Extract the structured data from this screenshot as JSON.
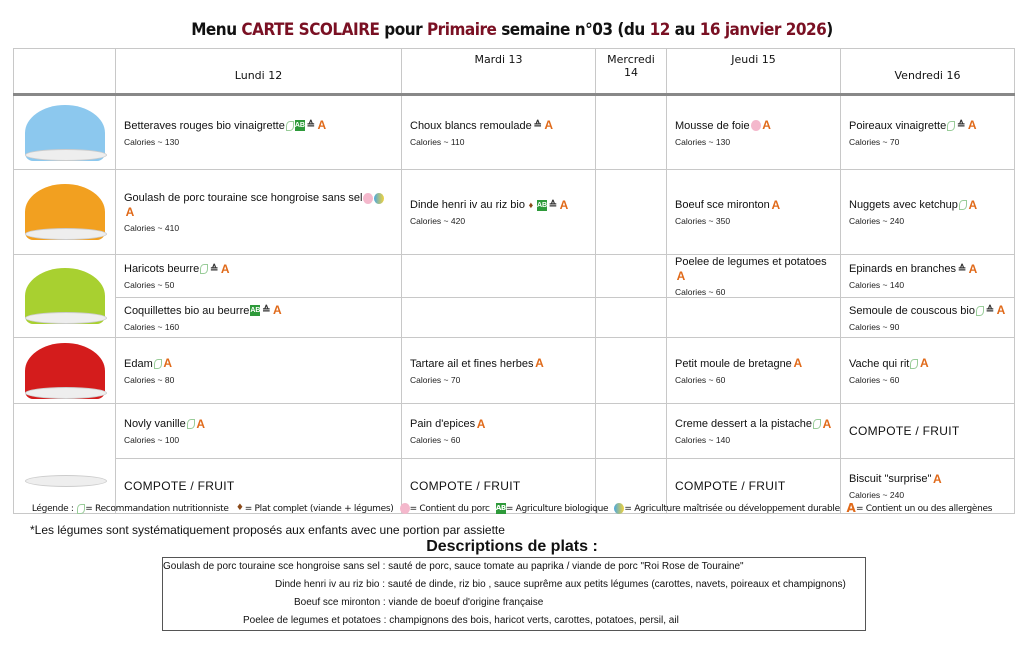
{
  "title": {
    "p1": "Menu ",
    "p2": "CARTE SCOLAIRE",
    "p3": " pour ",
    "p4": "Primaire",
    "p5": " semaine n°03 (du ",
    "p6": "12",
    "p7": " au ",
    "p8": "16 janvier 2026",
    "p9": ")"
  },
  "days": [
    "Lundi 12",
    "Mardi 13",
    "Mercredi 14",
    "Jeudi 15",
    "Vendredi 16"
  ],
  "rows": {
    "entree": {
      "lundi": {
        "name": "Betteraves rouges bio vinaigrette",
        "cal": "Calories ~ 130"
      },
      "mardi": {
        "name": "Choux blancs remoulade",
        "cal": "Calories ~ 110"
      },
      "jeudi": {
        "name": "Mousse de foie",
        "cal": "Calories ~ 130"
      },
      "vendredi": {
        "name": "Poireaux vinaigrette",
        "cal": "Calories ~ 70"
      }
    },
    "plat": {
      "lundi": {
        "name": "Goulash de porc touraine sce hongroise sans sel",
        "cal": "Calories ~ 410"
      },
      "mardi": {
        "name": "Dinde henri iv au riz bio",
        "cal": "Calories ~ 420"
      },
      "jeudi": {
        "name": "Boeuf sce mironton",
        "cal": "Calories ~ 350"
      },
      "vendredi": {
        "name": "Nuggets avec ketchup",
        "cal": "Calories ~ 240"
      }
    },
    "legume1": {
      "lundi": {
        "name": "Haricots beurre",
        "cal": "Calories ~ 50"
      },
      "jeudi": {
        "name": "Poelee de legumes et potatoes",
        "cal": "Calories ~ 60"
      },
      "vendredi": {
        "name": "Epinards en branches",
        "cal": "Calories ~ 140"
      }
    },
    "legume2": {
      "lundi": {
        "name": "Coquillettes bio au beurre",
        "cal": "Calories ~ 160"
      },
      "vendredi": {
        "name": "Semoule de couscous bio",
        "cal": "Calories ~ 90"
      }
    },
    "fromage": {
      "lundi": {
        "name": "Edam",
        "cal": "Calories ~ 80"
      },
      "mardi": {
        "name": "Tartare ail et fines herbes",
        "cal": "Calories ~ 70"
      },
      "jeudi": {
        "name": "Petit moule de bretagne",
        "cal": "Calories ~ 60"
      },
      "vendredi": {
        "name": "Vache qui rit",
        "cal": "Calories ~ 60"
      }
    },
    "dessert1": {
      "lundi": {
        "name": "Novly vanille",
        "cal": "Calories ~ 100"
      },
      "mardi": {
        "name": "Pain d'epices",
        "cal": "Calories ~ 60"
      },
      "jeudi": {
        "name": "Creme dessert a la pistache",
        "cal": "Calories ~ 140"
      },
      "vendredi": {
        "name": "COMPOTE / FRUIT"
      }
    },
    "dessert2": {
      "lundi": {
        "name": "COMPOTE / FRUIT"
      },
      "mardi": {
        "name": "COMPOTE / FRUIT"
      },
      "jeudi": {
        "name": "COMPOTE / FRUIT"
      },
      "vendredi": {
        "name": "Biscuit \"surprise\"",
        "cal": "Calories ~ 240"
      }
    }
  },
  "icons": {
    "ab": "AB",
    "allergen": "A",
    "homemade": "≙",
    "leaf": "",
    "pig": "",
    "durable": "",
    "complete": "♦"
  },
  "legend": {
    "label": "Légende : ",
    "items": [
      "= Recommandation nutritionniste",
      "= Plat complet (viande + légumes)",
      "= Contient du porc",
      "= Agriculture biologique",
      "= Agriculture maîtrisée ou développement durable",
      "= Contient un ou des allergènes"
    ]
  },
  "note": "*Les légumes sont systématiquement proposés aux enfants avec une portion par assiette",
  "descriptions_title": "Descriptions de plats :",
  "descriptions": [
    "Goulash de porc touraine sce hongroise sans sel : sauté de porc, sauce tomate au paprika / viande de porc \"Roi Rose de Touraine\"",
    "Dinde henri iv au riz bio : sauté de dinde, riz bio , sauce suprême aux petits légumes (carottes, navets, poireaux et champignons)",
    "Boeuf sce mironton : viande de boeuf d'origine française",
    "Poelee de legumes et potatoes : champignons des bois, haricot verts, carottes, potatoes, persil, ail"
  ],
  "colors": {
    "accent": "#7a1023",
    "allergen": "#e06a1a",
    "bio": "#2e9a3a"
  }
}
